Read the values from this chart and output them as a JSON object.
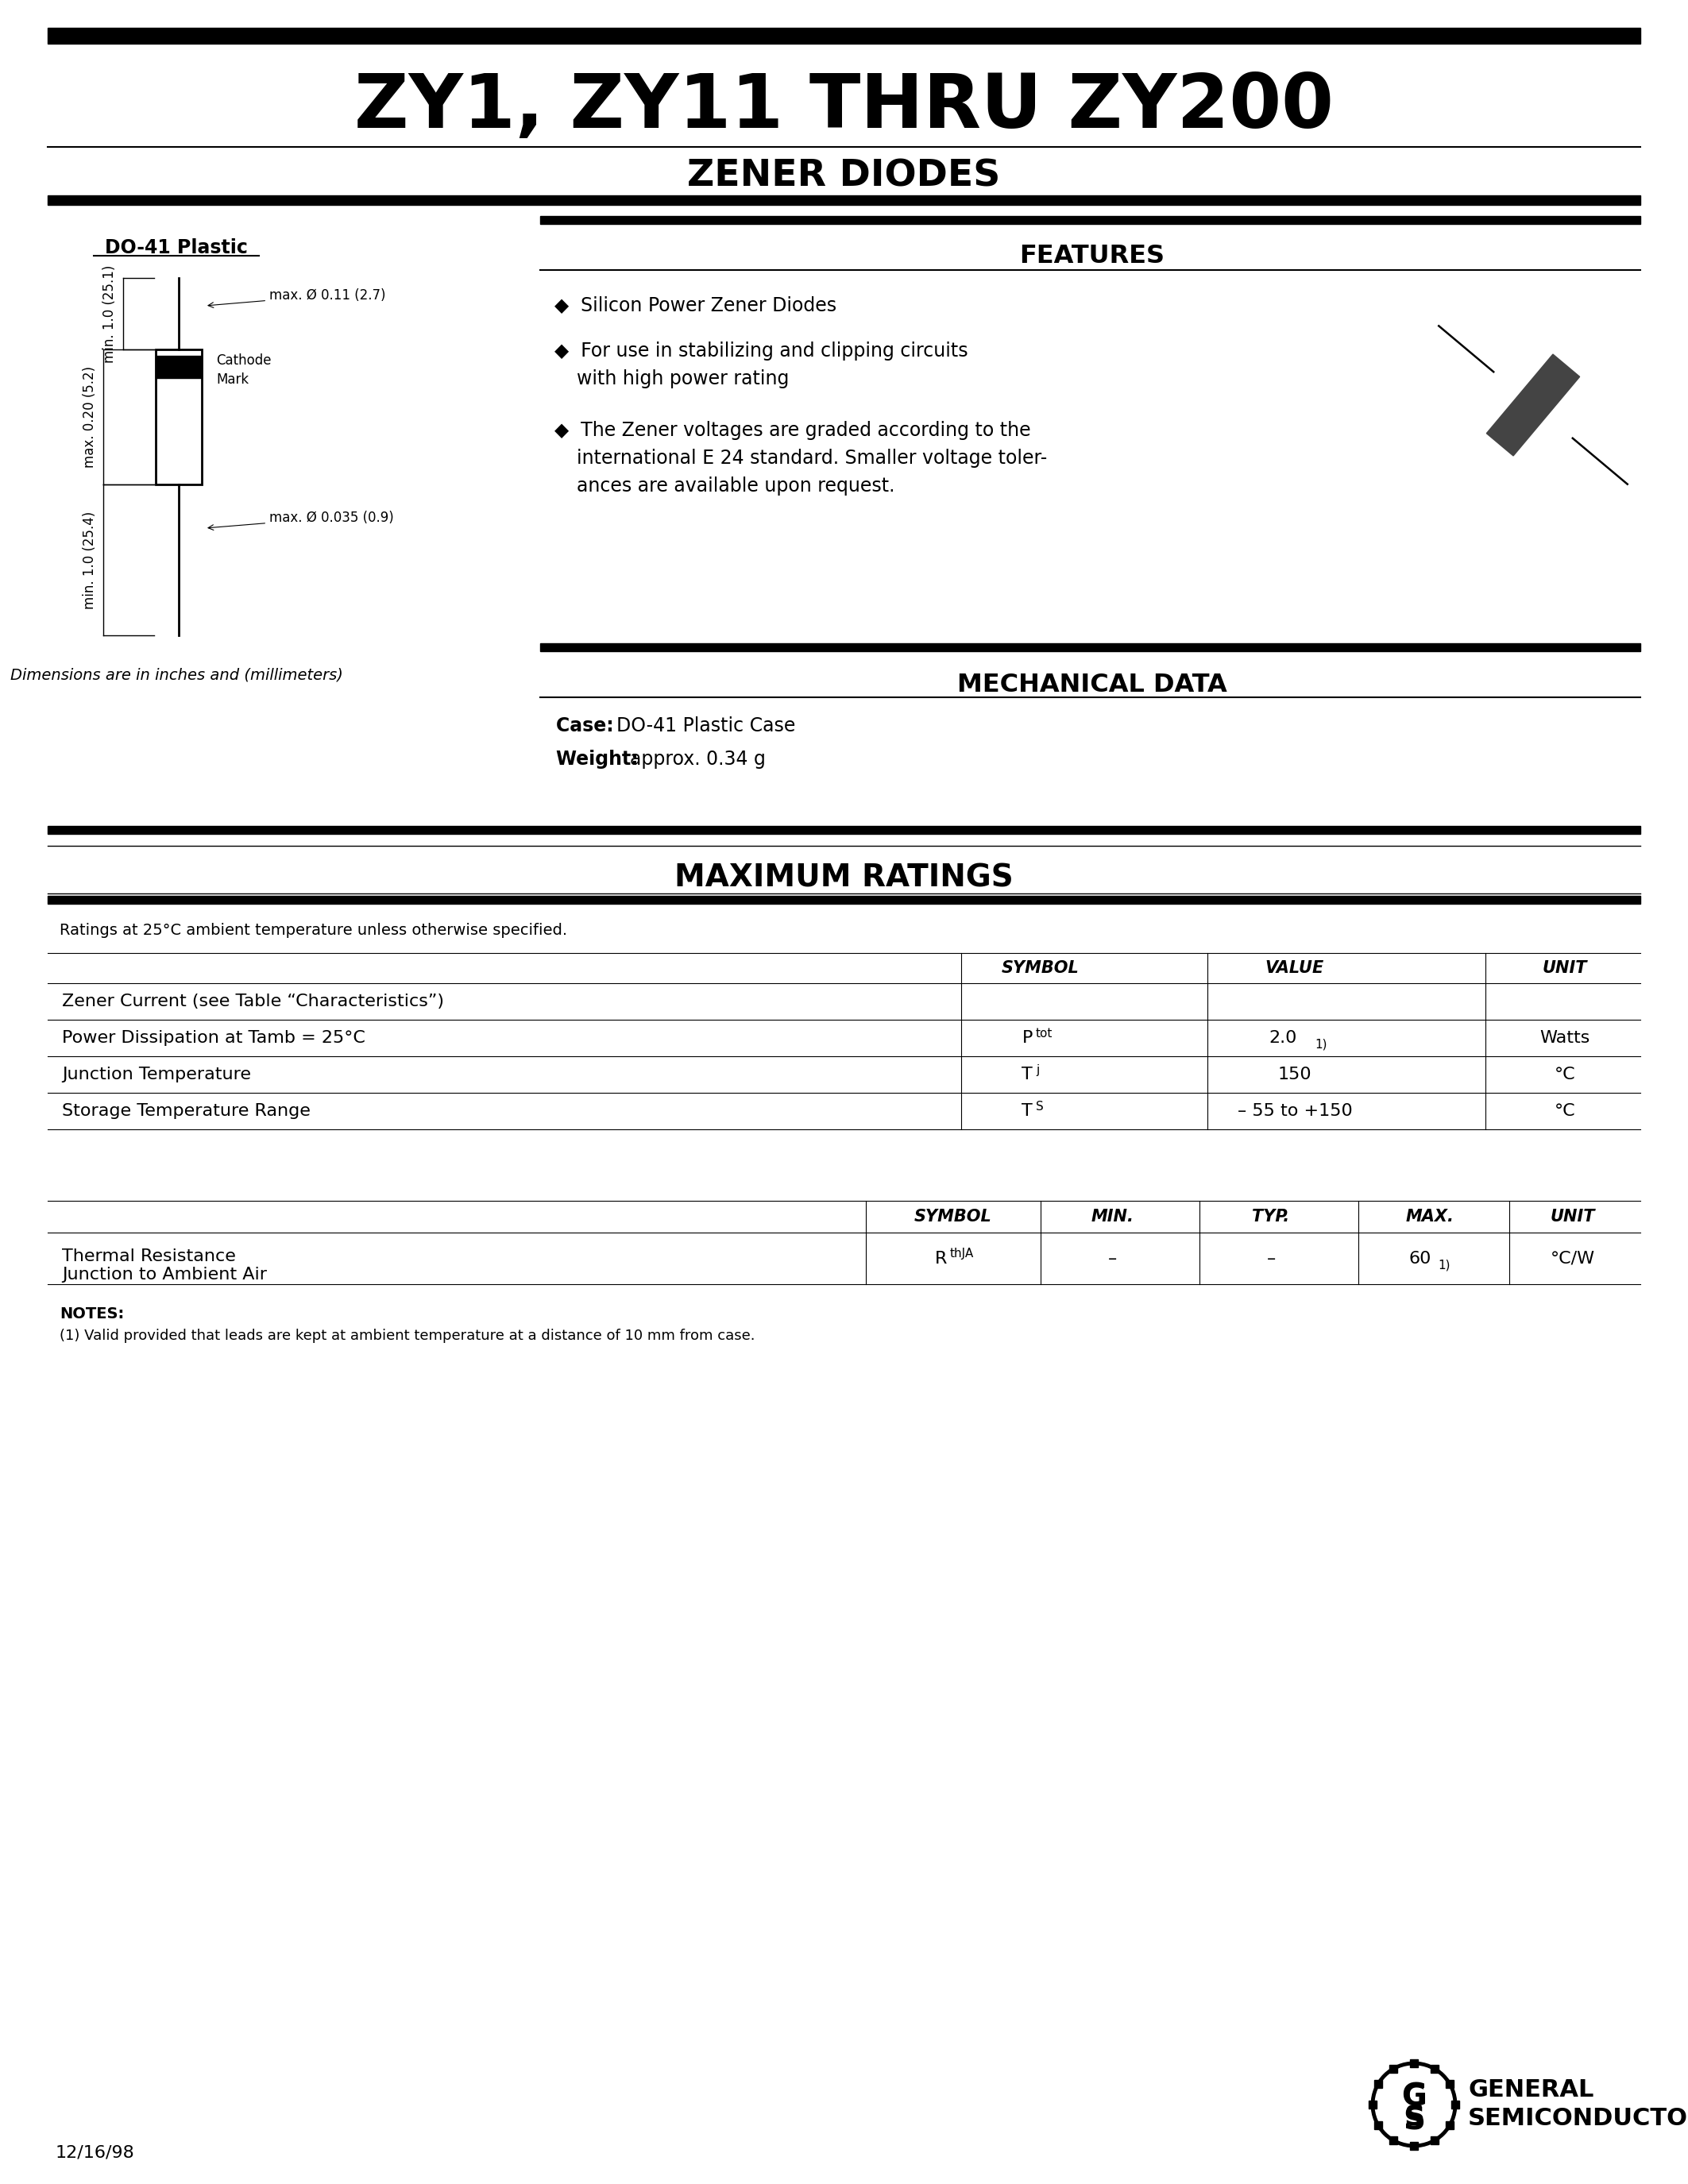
{
  "title": "ZY1, ZY11 THRU ZY200",
  "subtitle": "ZENER DIODES",
  "bg_color": "#ffffff",
  "text_color": "#000000",
  "page_date": "12/16/98",
  "do41_label": "DO-41 Plastic",
  "features_title": "FEATURES",
  "mech_title": "MECHANICAL DATA",
  "mech_case": "DO-41 Plastic Case",
  "mech_weight": "approx. 0.34 g",
  "dim_note": "Dimensions are in inches and (millimeters)",
  "max_ratings_title": "MAXIMUM RATINGS",
  "max_ratings_note": "Ratings at 25°C ambient temperature unless otherwise specified.",
  "thermal_headers": [
    "",
    "SYMBOL",
    "MIN.",
    "TYP.",
    "MAX.",
    "UNIT"
  ],
  "notes_title": "NOTES:",
  "notes": [
    "(1) Valid provided that leads are kept at ambient temperature at a distance of 10 mm from case."
  ],
  "gs_company1": "GENERAL",
  "gs_company2": "SEMICONDUCTOR",
  "company_registered": "®"
}
